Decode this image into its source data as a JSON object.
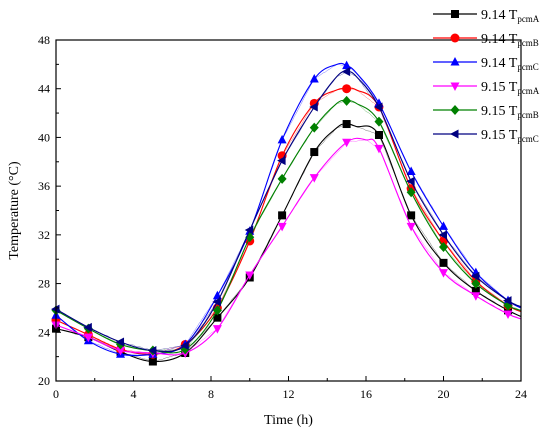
{
  "chart_data": {
    "type": "line",
    "title": "",
    "xlabel": "Time (h)",
    "ylabel": "Temperature (°C)",
    "xlim": [
      0,
      24
    ],
    "ylim": [
      20,
      48
    ],
    "xticks": [
      0,
      4,
      8,
      12,
      16,
      20,
      24
    ],
    "yticks": [
      20,
      24,
      28,
      32,
      36,
      40,
      44,
      48
    ],
    "grid": false,
    "legend_position": "top-right",
    "marker_x": [
      0,
      1.67,
      3.33,
      5,
      6.67,
      8.33,
      10,
      11.67,
      13.33,
      15,
      16.67,
      18.33,
      20,
      21.67,
      23.33
    ],
    "series": [
      {
        "name": "9.14 T",
        "name_sub": "pcmA",
        "color": "#000000",
        "marker": "square",
        "x": [
          0,
          1.67,
          3.33,
          5,
          6.67,
          8.33,
          10,
          11.67,
          13.33,
          14.5,
          15,
          15.5,
          16.67,
          18.33,
          20,
          21.67,
          23.33,
          24
        ],
        "values": [
          24.3,
          23.6,
          22.4,
          21.6,
          22.3,
          25.2,
          28.5,
          33.6,
          38.8,
          40.8,
          41.1,
          40.9,
          40.2,
          33.6,
          29.7,
          27.4,
          25.8,
          25.3
        ]
      },
      {
        "name": "9.14 T",
        "name_sub": "pcmB",
        "color": "#ff0000",
        "marker": "circle",
        "x": [
          0,
          1.67,
          3.33,
          5,
          6.67,
          8.33,
          10,
          11.67,
          13.33,
          14.5,
          15,
          15.5,
          16.67,
          18.33,
          20,
          21.67,
          23.33,
          24
        ],
        "values": [
          25.0,
          23.8,
          22.6,
          22.2,
          23.0,
          26.0,
          31.5,
          38.5,
          42.8,
          43.9,
          44.0,
          43.9,
          42.5,
          35.8,
          31.5,
          28.2,
          26.2,
          25.7
        ]
      },
      {
        "name": "9.14 T",
        "name_sub": "pcmC",
        "color": "#0000ff",
        "marker": "triangle-up",
        "x": [
          0,
          1.67,
          3.33,
          5,
          6.67,
          8.33,
          10,
          11.67,
          13.33,
          14.5,
          15,
          15.5,
          16.67,
          18.33,
          20,
          21.67,
          23.33,
          24
        ],
        "values": [
          25.4,
          23.3,
          22.2,
          22.2,
          23.0,
          27.0,
          32.3,
          39.8,
          44.8,
          46.0,
          45.9,
          45.3,
          42.8,
          37.2,
          32.7,
          28.9,
          26.6,
          26.0
        ]
      },
      {
        "name": "9.15 T",
        "name_sub": "pcmA",
        "color": "#ff00ff",
        "marker": "triangle-down",
        "x": [
          0,
          1.67,
          3.33,
          5,
          6.67,
          8.33,
          10,
          11.67,
          13.33,
          15,
          16,
          16.67,
          18.33,
          20,
          21.67,
          23.33,
          24
        ],
        "values": [
          24.6,
          23.6,
          22.5,
          22.3,
          22.3,
          24.3,
          28.7,
          32.7,
          36.7,
          39.6,
          39.8,
          39.1,
          32.7,
          28.9,
          27.0,
          25.5,
          25.1
        ]
      },
      {
        "name": "9.15 T",
        "name_sub": "pcmB",
        "color": "#008000",
        "marker": "diamond",
        "x": [
          0,
          1.67,
          3.33,
          5,
          6.67,
          8.33,
          10,
          11.67,
          13.33,
          14.5,
          15,
          15.5,
          16.67,
          18.33,
          20,
          21.67,
          23.33,
          24
        ],
        "values": [
          25.8,
          24.3,
          23.0,
          22.5,
          22.6,
          25.8,
          31.8,
          36.6,
          40.8,
          42.8,
          43.0,
          42.8,
          41.3,
          35.5,
          31.0,
          28.0,
          26.2,
          25.8
        ]
      },
      {
        "name": "9.15 T",
        "name_sub": "pcmC",
        "color": "#000080",
        "marker": "triangle-left",
        "x": [
          0,
          1.67,
          3.33,
          5,
          6.67,
          8.33,
          10,
          11.67,
          13.33,
          14.5,
          15,
          15.5,
          16.67,
          18.33,
          20,
          21.67,
          23.33,
          24
        ],
        "values": [
          25.9,
          24.4,
          23.2,
          22.5,
          22.9,
          26.5,
          32.4,
          38.1,
          42.5,
          45.0,
          45.4,
          45.0,
          42.5,
          36.4,
          32.0,
          28.6,
          26.6,
          26.1
        ]
      }
    ]
  }
}
